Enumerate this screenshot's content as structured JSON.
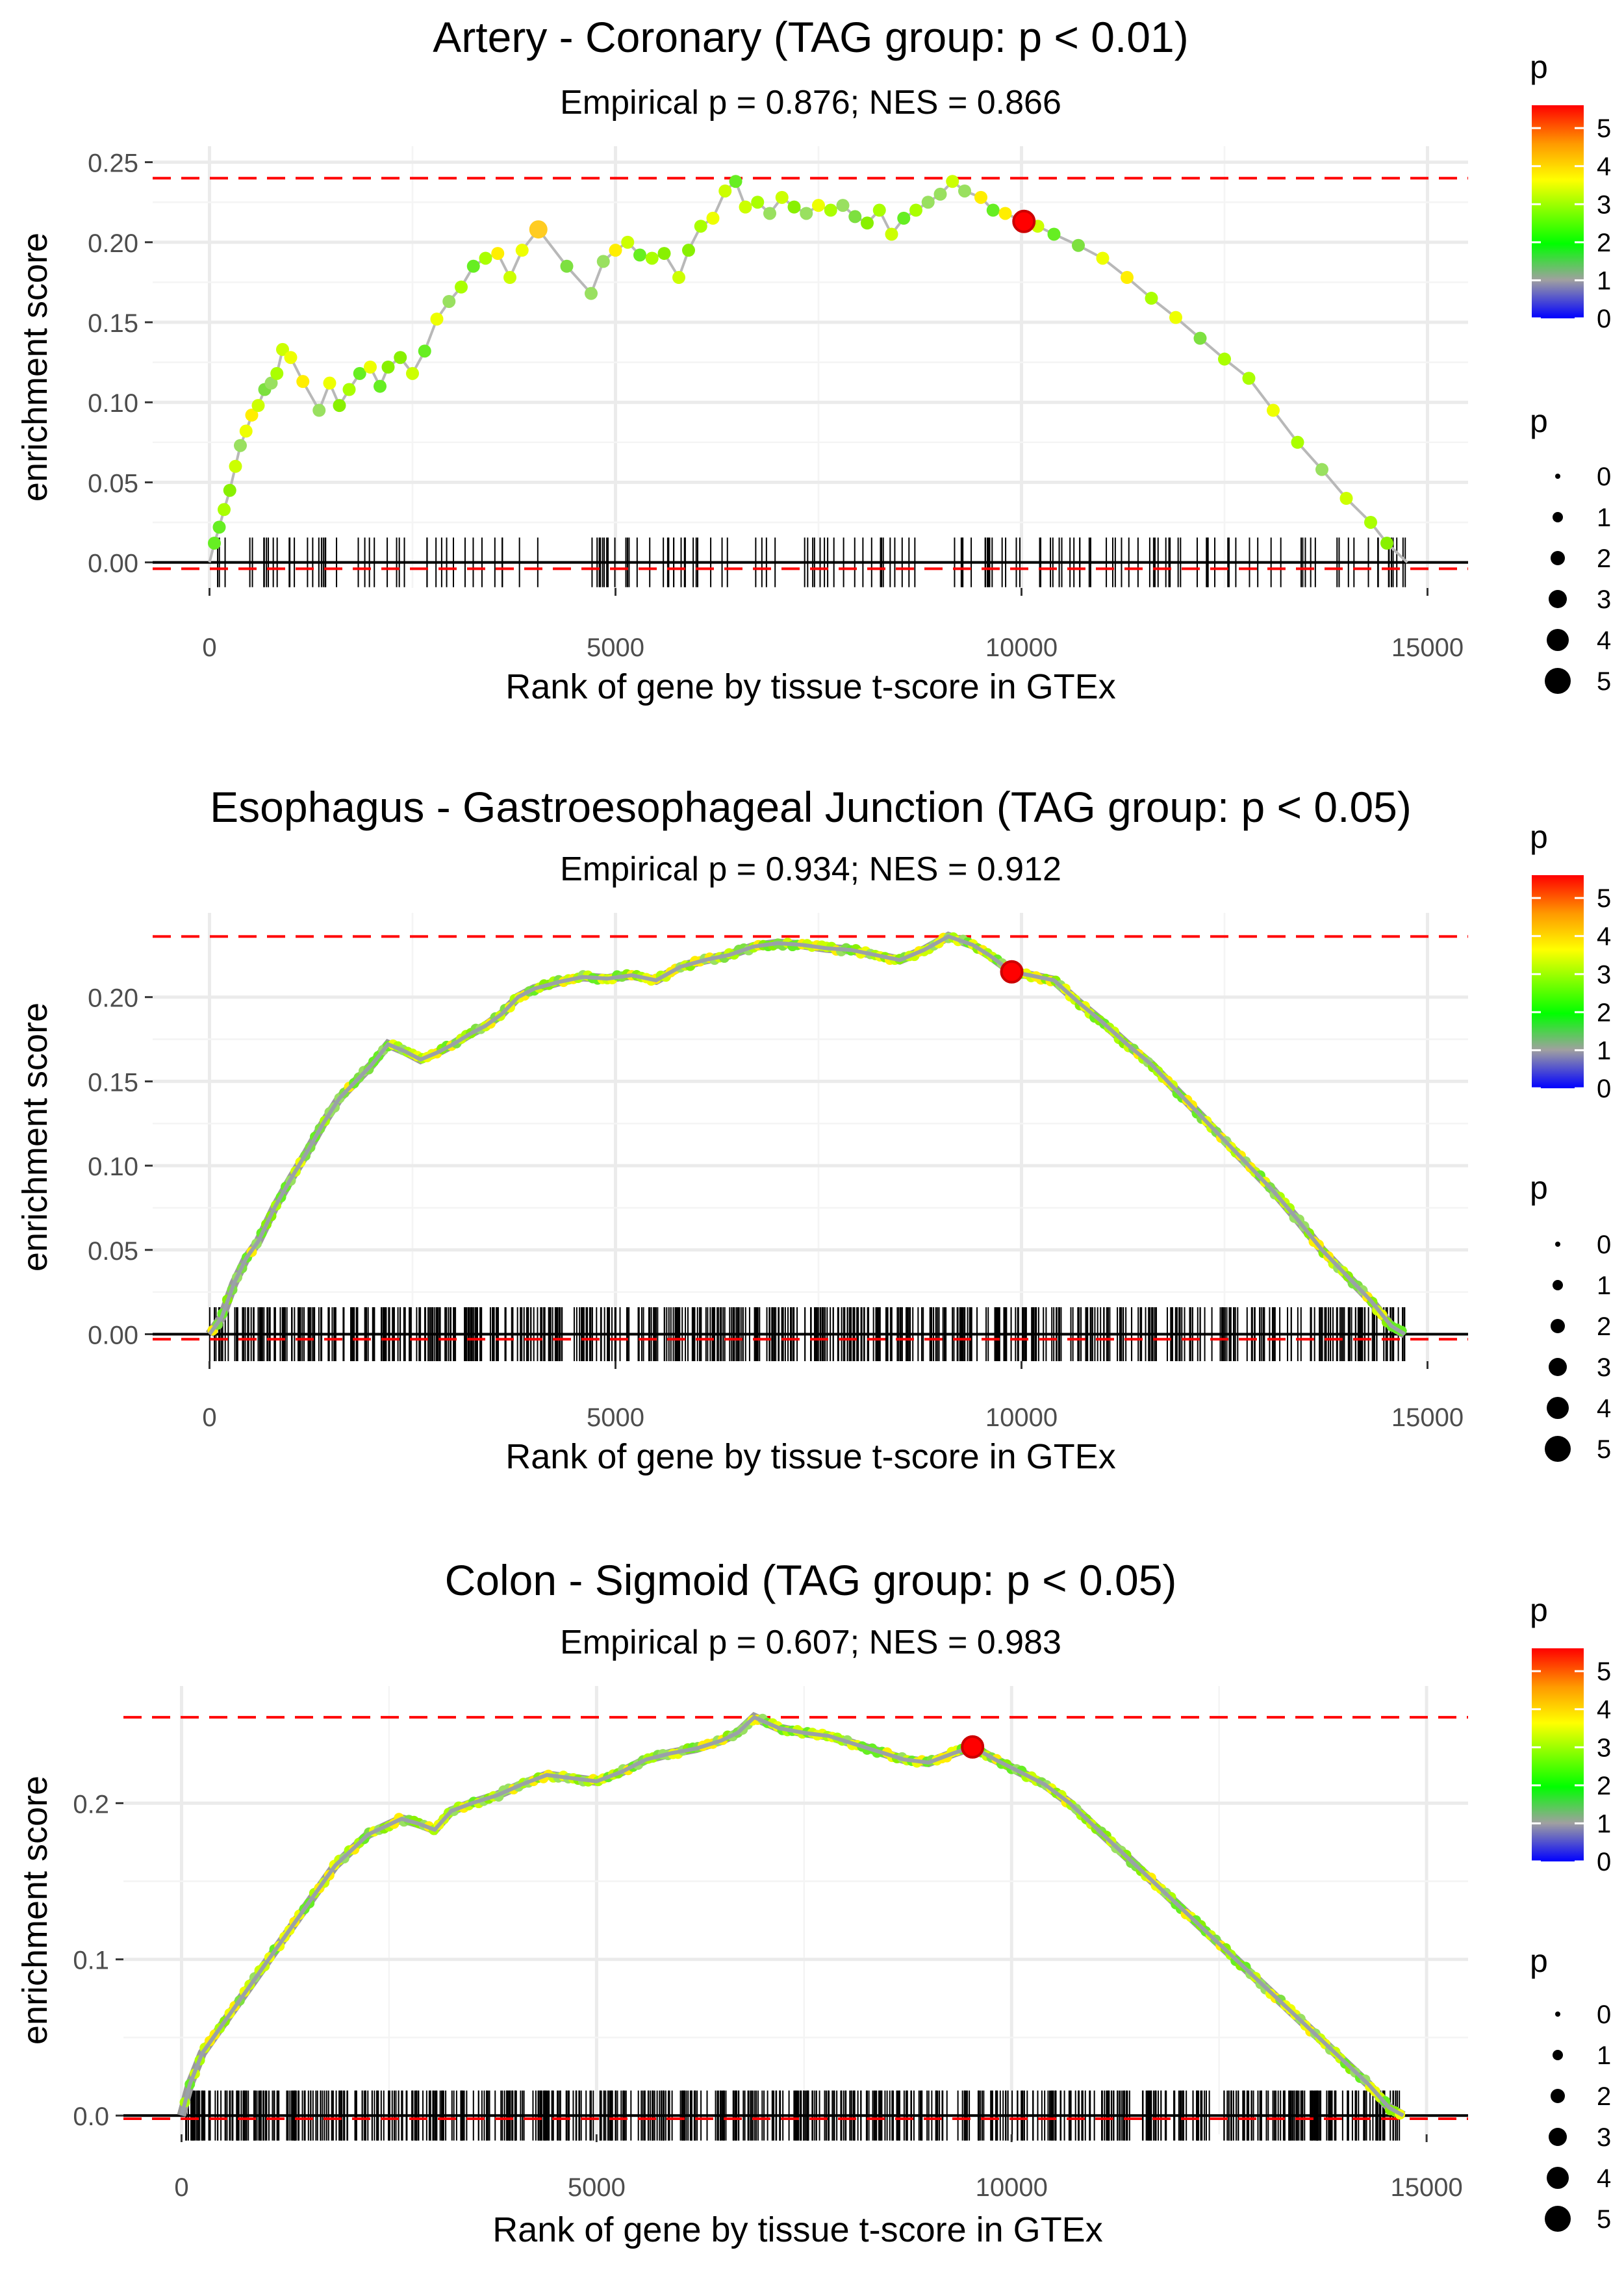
{
  "chart_data": [
    {
      "type": "line",
      "title": "Artery - Coronary (TAG group: p < 0.01)",
      "subtitle": "Empirical p = 0.876; NES = 0.866",
      "xlabel": "Rank of gene by tissue t-score in GTEx",
      "ylabel": "enrichment score",
      "xlim": [
        -700,
        15500
      ],
      "ylim": [
        -0.016,
        0.26
      ],
      "xticks": [
        0,
        5000,
        10000,
        15000
      ],
      "xtick_labels": [
        "0",
        "5000",
        "10000",
        "15000"
      ],
      "yticks": [
        0,
        0.05,
        0.1,
        0.15,
        0.2,
        0.25
      ],
      "ytick_labels": [
        "0.00",
        "0.05",
        "0.10",
        "0.15",
        "0.20",
        "0.25"
      ],
      "max_es": 0.24,
      "min_es": -0.004,
      "highlight": {
        "x": 10030,
        "y": 0.213
      },
      "es_curve": [
        [
          0,
          0.0
        ],
        [
          60,
          0.012
        ],
        [
          120,
          0.022
        ],
        [
          180,
          0.033
        ],
        [
          250,
          0.045
        ],
        [
          320,
          0.06
        ],
        [
          380,
          0.073
        ],
        [
          450,
          0.082
        ],
        [
          520,
          0.092
        ],
        [
          600,
          0.098
        ],
        [
          680,
          0.108
        ],
        [
          760,
          0.112
        ],
        [
          830,
          0.118
        ],
        [
          900,
          0.133
        ],
        [
          1000,
          0.128
        ],
        [
          1150,
          0.113
        ],
        [
          1350,
          0.095
        ],
        [
          1480,
          0.112
        ],
        [
          1600,
          0.098
        ],
        [
          1720,
          0.108
        ],
        [
          1850,
          0.118
        ],
        [
          1980,
          0.122
        ],
        [
          2100,
          0.11
        ],
        [
          2200,
          0.122
        ],
        [
          2350,
          0.128
        ],
        [
          2500,
          0.118
        ],
        [
          2650,
          0.132
        ],
        [
          2800,
          0.152
        ],
        [
          2950,
          0.163
        ],
        [
          3100,
          0.172
        ],
        [
          3250,
          0.185
        ],
        [
          3400,
          0.19
        ],
        [
          3550,
          0.193
        ],
        [
          3700,
          0.178
        ],
        [
          3850,
          0.195
        ],
        [
          4050,
          0.208
        ],
        [
          4400,
          0.185
        ],
        [
          4700,
          0.168
        ],
        [
          4850,
          0.188
        ],
        [
          5000,
          0.195
        ],
        [
          5150,
          0.2
        ],
        [
          5300,
          0.192
        ],
        [
          5450,
          0.19
        ],
        [
          5600,
          0.193
        ],
        [
          5780,
          0.178
        ],
        [
          5900,
          0.195
        ],
        [
          6050,
          0.21
        ],
        [
          6200,
          0.215
        ],
        [
          6350,
          0.232
        ],
        [
          6480,
          0.238
        ],
        [
          6600,
          0.222
        ],
        [
          6750,
          0.225
        ],
        [
          6900,
          0.218
        ],
        [
          7050,
          0.228
        ],
        [
          7200,
          0.222
        ],
        [
          7350,
          0.218
        ],
        [
          7500,
          0.223
        ],
        [
          7650,
          0.22
        ],
        [
          7800,
          0.223
        ],
        [
          7950,
          0.216
        ],
        [
          8100,
          0.212
        ],
        [
          8250,
          0.22
        ],
        [
          8400,
          0.205
        ],
        [
          8550,
          0.215
        ],
        [
          8700,
          0.22
        ],
        [
          8850,
          0.225
        ],
        [
          9000,
          0.23
        ],
        [
          9150,
          0.238
        ],
        [
          9300,
          0.232
        ],
        [
          9500,
          0.228
        ],
        [
          9650,
          0.22
        ],
        [
          9800,
          0.218
        ],
        [
          10030,
          0.213
        ],
        [
          10200,
          0.21
        ],
        [
          10400,
          0.205
        ],
        [
          10700,
          0.198
        ],
        [
          11000,
          0.19
        ],
        [
          11300,
          0.178
        ],
        [
          11600,
          0.165
        ],
        [
          11900,
          0.153
        ],
        [
          12200,
          0.14
        ],
        [
          12500,
          0.127
        ],
        [
          12800,
          0.115
        ],
        [
          13100,
          0.095
        ],
        [
          13400,
          0.075
        ],
        [
          13700,
          0.058
        ],
        [
          14000,
          0.04
        ],
        [
          14300,
          0.025
        ],
        [
          14500,
          0.012
        ],
        [
          14750,
          0.0
        ]
      ],
      "hit_count": 170,
      "hit_pattern": "sparse",
      "point_color_legend": {
        "title": "p",
        "min": 0,
        "max": 5.6,
        "labels": [
          "5",
          "4",
          "3",
          "2",
          "1",
          "0"
        ]
      },
      "point_size_legend": {
        "title": "p",
        "labels": [
          "0",
          "1",
          "2",
          "3",
          "4",
          "5"
        ]
      }
    },
    {
      "type": "line",
      "title": "Esophagus - Gastroesophageal Junction (TAG group: p < 0.05)",
      "subtitle": "Empirical p = 0.934; NES = 0.912",
      "xlabel": "Rank of gene by tissue t-score in GTEx",
      "ylabel": "enrichment score",
      "xlim": [
        -700,
        15500
      ],
      "ylim": [
        -0.016,
        0.25
      ],
      "xticks": [
        0,
        5000,
        10000,
        15000
      ],
      "xtick_labels": [
        "0",
        "5000",
        "10000",
        "15000"
      ],
      "yticks": [
        0,
        0.05,
        0.1,
        0.15,
        0.2
      ],
      "ytick_labels": [
        "0.00",
        "0.05",
        "0.10",
        "0.15",
        "0.20"
      ],
      "max_es": 0.236,
      "min_es": -0.003,
      "highlight": {
        "x": 9880,
        "y": 0.215
      },
      "es_curve": [
        [
          0,
          0.0
        ],
        [
          150,
          0.01
        ],
        [
          300,
          0.03
        ],
        [
          450,
          0.045
        ],
        [
          600,
          0.055
        ],
        [
          800,
          0.075
        ],
        [
          1000,
          0.092
        ],
        [
          1200,
          0.108
        ],
        [
          1400,
          0.125
        ],
        [
          1600,
          0.14
        ],
        [
          1800,
          0.15
        ],
        [
          2000,
          0.16
        ],
        [
          2200,
          0.172
        ],
        [
          2400,
          0.168
        ],
        [
          2600,
          0.163
        ],
        [
          2800,
          0.167
        ],
        [
          3000,
          0.172
        ],
        [
          3200,
          0.178
        ],
        [
          3400,
          0.183
        ],
        [
          3600,
          0.19
        ],
        [
          3800,
          0.2
        ],
        [
          4000,
          0.205
        ],
        [
          4300,
          0.209
        ],
        [
          4600,
          0.212
        ],
        [
          4900,
          0.211
        ],
        [
          5200,
          0.213
        ],
        [
          5500,
          0.21
        ],
        [
          5800,
          0.218
        ],
        [
          6100,
          0.222
        ],
        [
          6400,
          0.225
        ],
        [
          6700,
          0.23
        ],
        [
          7000,
          0.232
        ],
        [
          7300,
          0.231
        ],
        [
          7600,
          0.229
        ],
        [
          7900,
          0.228
        ],
        [
          8200,
          0.225
        ],
        [
          8500,
          0.222
        ],
        [
          8800,
          0.228
        ],
        [
          9100,
          0.236
        ],
        [
          9400,
          0.231
        ],
        [
          9600,
          0.225
        ],
        [
          9880,
          0.215
        ],
        [
          10100,
          0.213
        ],
        [
          10400,
          0.21
        ],
        [
          10700,
          0.197
        ],
        [
          11000,
          0.185
        ],
        [
          11300,
          0.172
        ],
        [
          11600,
          0.16
        ],
        [
          11900,
          0.145
        ],
        [
          12200,
          0.13
        ],
        [
          12500,
          0.115
        ],
        [
          12800,
          0.1
        ],
        [
          13100,
          0.085
        ],
        [
          13400,
          0.068
        ],
        [
          13700,
          0.05
        ],
        [
          14000,
          0.035
        ],
        [
          14300,
          0.02
        ],
        [
          14550,
          0.005
        ],
        [
          14720,
          0.0
        ]
      ],
      "hit_count": 640,
      "hit_pattern": "dense",
      "point_color_legend": {
        "title": "p",
        "min": 0,
        "max": 5.6,
        "labels": [
          "5",
          "4",
          "3",
          "2",
          "1",
          "0"
        ]
      },
      "point_size_legend": {
        "title": "p",
        "labels": [
          "0",
          "1",
          "2",
          "3",
          "4",
          "5"
        ]
      }
    },
    {
      "type": "line",
      "title": "Colon - Sigmoid (TAG group: p < 0.05)",
      "subtitle": "Empirical p = 0.607; NES = 0.983",
      "xlabel": "Rank of gene by tissue t-score in GTEx",
      "ylabel": "enrichment score",
      "xlim": [
        -700,
        15500
      ],
      "ylim": [
        -0.012,
        0.275
      ],
      "xticks": [
        0,
        5000,
        10000,
        15000
      ],
      "xtick_labels": [
        "0",
        "5000",
        "10000",
        "15000"
      ],
      "yticks": [
        0,
        0.1,
        0.2
      ],
      "ytick_labels": [
        "0.0",
        "0.1",
        "0.2"
      ],
      "max_es": 0.255,
      "min_es": -0.002,
      "highlight": {
        "x": 9530,
        "y": 0.236
      },
      "es_curve": [
        [
          0,
          0.0
        ],
        [
          100,
          0.02
        ],
        [
          250,
          0.04
        ],
        [
          450,
          0.055
        ],
        [
          650,
          0.07
        ],
        [
          850,
          0.085
        ],
        [
          1050,
          0.1
        ],
        [
          1250,
          0.115
        ],
        [
          1450,
          0.13
        ],
        [
          1650,
          0.145
        ],
        [
          1850,
          0.16
        ],
        [
          2050,
          0.17
        ],
        [
          2250,
          0.18
        ],
        [
          2450,
          0.185
        ],
        [
          2650,
          0.19
        ],
        [
          2850,
          0.187
        ],
        [
          3050,
          0.183
        ],
        [
          3250,
          0.195
        ],
        [
          3500,
          0.2
        ],
        [
          3800,
          0.205
        ],
        [
          4100,
          0.212
        ],
        [
          4400,
          0.218
        ],
        [
          4700,
          0.216
        ],
        [
          5000,
          0.214
        ],
        [
          5300,
          0.22
        ],
        [
          5600,
          0.228
        ],
        [
          5900,
          0.232
        ],
        [
          6200,
          0.235
        ],
        [
          6500,
          0.24
        ],
        [
          6700,
          0.245
        ],
        [
          6900,
          0.255
        ],
        [
          7200,
          0.248
        ],
        [
          7500,
          0.245
        ],
        [
          7800,
          0.243
        ],
        [
          8100,
          0.238
        ],
        [
          8400,
          0.233
        ],
        [
          8700,
          0.228
        ],
        [
          9000,
          0.226
        ],
        [
          9300,
          0.232
        ],
        [
          9530,
          0.236
        ],
        [
          9800,
          0.228
        ],
        [
          10100,
          0.22
        ],
        [
          10400,
          0.212
        ],
        [
          10700,
          0.2
        ],
        [
          11000,
          0.185
        ],
        [
          11300,
          0.17
        ],
        [
          11600,
          0.155
        ],
        [
          11900,
          0.14
        ],
        [
          12200,
          0.125
        ],
        [
          12500,
          0.11
        ],
        [
          12800,
          0.095
        ],
        [
          13100,
          0.08
        ],
        [
          13400,
          0.065
        ],
        [
          13700,
          0.05
        ],
        [
          14000,
          0.035
        ],
        [
          14300,
          0.02
        ],
        [
          14550,
          0.005
        ],
        [
          14720,
          0.0
        ]
      ],
      "hit_count": 700,
      "hit_pattern": "dense",
      "point_color_legend": {
        "title": "p",
        "min": 0,
        "max": 5.6,
        "labels": [
          "5",
          "4",
          "3",
          "2",
          "1",
          "0"
        ]
      },
      "point_size_legend": {
        "title": "p",
        "labels": [
          "0",
          "1",
          "2",
          "3",
          "4",
          "5"
        ]
      }
    }
  ]
}
